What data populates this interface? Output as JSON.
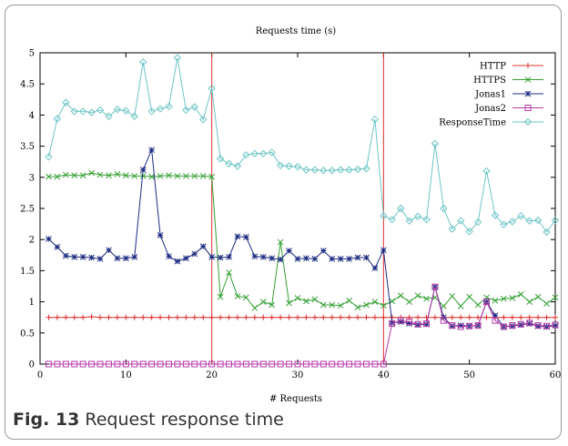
{
  "figure": {
    "label": "Fig. 13",
    "caption": "Request response time"
  },
  "colors": {
    "HTTP": "#e03030",
    "HTTPS": "#34a034",
    "Jonas1": "#1c2a80",
    "Jonas2": "#b53aa8",
    "ResponseTime": "#6ec5c5",
    "markers": "#e03030"
  },
  "chart_data": {
    "type": "line",
    "title": "Requests time (s)",
    "xlabel": "# Requests",
    "ylabel": "",
    "xlim": [
      0,
      60
    ],
    "ylim": [
      0,
      5
    ],
    "xticks": [
      0,
      10,
      20,
      30,
      40,
      50,
      60
    ],
    "yticks": [
      0,
      0.5,
      1,
      1.5,
      2,
      2.5,
      3,
      3.5,
      4,
      4.5,
      5
    ],
    "grid": false,
    "legend_position": "top-right",
    "vertical_markers": [
      20,
      40
    ],
    "x": [
      1,
      2,
      3,
      4,
      5,
      6,
      7,
      8,
      9,
      10,
      11,
      12,
      13,
      14,
      15,
      16,
      17,
      18,
      19,
      20,
      21,
      22,
      23,
      24,
      25,
      26,
      27,
      28,
      29,
      30,
      31,
      32,
      33,
      34,
      35,
      36,
      37,
      38,
      39,
      40,
      41,
      42,
      43,
      44,
      45,
      46,
      47,
      48,
      49,
      50,
      51,
      52,
      53,
      54,
      55,
      56,
      57,
      58,
      59,
      60
    ],
    "series": [
      {
        "name": "HTTP",
        "marker": "plus",
        "values": [
          0.75,
          0.75,
          0.75,
          0.75,
          0.75,
          0.76,
          0.75,
          0.75,
          0.75,
          0.75,
          0.75,
          0.75,
          0.75,
          0.75,
          0.75,
          0.75,
          0.75,
          0.75,
          0.75,
          0.75,
          0.75,
          0.75,
          0.75,
          0.75,
          0.75,
          0.75,
          0.75,
          0.75,
          0.75,
          0.75,
          0.75,
          0.75,
          0.75,
          0.75,
          0.75,
          0.75,
          0.75,
          0.75,
          0.75,
          0.75,
          0.75,
          0.75,
          0.75,
          0.75,
          0.75,
          0.75,
          0.75,
          0.75,
          0.75,
          0.75,
          0.75,
          0.75,
          0.75,
          0.75,
          0.75,
          0.75,
          0.75,
          0.75,
          0.75,
          0.75
        ]
      },
      {
        "name": "HTTPS",
        "marker": "cross",
        "values": [
          3.01,
          3.01,
          3.04,
          3.03,
          3.03,
          3.07,
          3.04,
          3.03,
          3.05,
          3.03,
          3.02,
          3.02,
          3.01,
          3.02,
          3.03,
          3.02,
          3.02,
          3.02,
          3.02,
          3.01,
          1.08,
          1.47,
          1.09,
          1.07,
          0.9,
          1.0,
          0.95,
          1.96,
          0.98,
          1.06,
          1.01,
          1.04,
          0.95,
          0.95,
          0.94,
          1.02,
          0.91,
          0.95,
          1.0,
          0.94,
          1.01,
          1.1,
          1.0,
          1.1,
          1.05,
          1.07,
          0.93,
          1.09,
          0.93,
          1.08,
          0.95,
          1.07,
          1.02,
          1.05,
          1.06,
          1.12,
          1.0,
          1.08,
          0.97,
          1.07
        ]
      },
      {
        "name": "Jonas1",
        "marker": "star",
        "values": [
          2.01,
          1.88,
          1.74,
          1.72,
          1.72,
          1.71,
          1.69,
          1.83,
          1.7,
          1.7,
          1.72,
          3.12,
          3.44,
          2.07,
          1.73,
          1.65,
          1.7,
          1.77,
          1.89,
          1.72,
          1.71,
          1.72,
          2.05,
          2.04,
          1.73,
          1.72,
          1.7,
          1.68,
          1.82,
          1.69,
          1.7,
          1.69,
          1.82,
          1.69,
          1.69,
          1.69,
          1.71,
          1.71,
          1.54,
          1.83,
          0.66,
          0.68,
          0.65,
          0.63,
          0.64,
          1.24,
          0.75,
          0.61,
          0.62,
          0.61,
          0.62,
          1.0,
          0.78,
          0.6,
          0.61,
          0.63,
          0.65,
          0.61,
          0.6,
          0.62
        ]
      },
      {
        "name": "Jonas2",
        "marker": "square",
        "values": [
          0,
          0,
          0,
          0,
          0,
          0,
          0,
          0,
          0,
          0,
          0,
          0,
          0,
          0,
          0,
          0,
          0,
          0,
          0,
          0,
          0,
          0,
          0,
          0,
          0,
          0,
          0,
          0,
          0,
          0,
          0,
          0,
          0,
          0,
          0,
          0,
          0,
          0,
          0,
          0,
          0.65,
          0.7,
          0.68,
          0.64,
          0.65,
          1.24,
          0.7,
          0.62,
          0.6,
          0.61,
          0.62,
          1.0,
          0.7,
          0.6,
          0.62,
          0.64,
          0.66,
          0.62,
          0.61,
          0.63
        ]
      },
      {
        "name": "ResponseTime",
        "marker": "diamond",
        "values": [
          3.33,
          3.94,
          4.2,
          4.06,
          4.06,
          4.04,
          4.08,
          3.98,
          4.09,
          4.07,
          3.98,
          4.85,
          4.06,
          4.1,
          4.14,
          4.92,
          4.08,
          4.13,
          3.93,
          4.43,
          3.3,
          3.22,
          3.18,
          3.36,
          3.38,
          3.38,
          3.4,
          3.19,
          3.18,
          3.17,
          3.12,
          3.12,
          3.11,
          3.11,
          3.12,
          3.12,
          3.13,
          3.14,
          3.93,
          2.38,
          2.32,
          2.5,
          2.3,
          2.37,
          2.32,
          3.54,
          2.5,
          2.17,
          2.3,
          2.13,
          2.28,
          3.1,
          2.39,
          2.24,
          2.29,
          2.38,
          2.3,
          2.31,
          2.12,
          2.31
        ]
      }
    ]
  }
}
